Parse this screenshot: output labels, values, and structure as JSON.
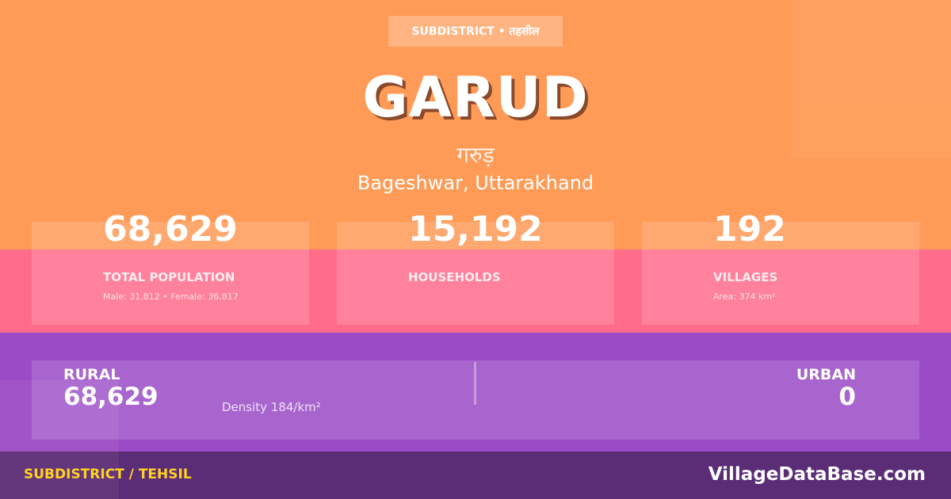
{
  "header": {
    "badge": "SUBDISTRICT • तहसील",
    "title": "GARUD",
    "title_hindi": "गरुड़",
    "location": "Bageshwar, Uttarakhand"
  },
  "stats": [
    {
      "value": "68,629",
      "label": "TOTAL POPULATION",
      "sub": "Male: 31,812 • Female: 36,817"
    },
    {
      "value": "15,192",
      "label": "HOUSEHOLDS",
      "sub": ""
    },
    {
      "value": "192",
      "label": "VILLAGES",
      "sub": "Area: 374 km²"
    }
  ],
  "split": {
    "rural_label": "RURAL",
    "rural_value": "68,629",
    "density": "Density 184/km²",
    "urban_label": "URBAN",
    "urban_value": "0"
  },
  "footer": {
    "type": "SUBDISTRICT / TEHSIL",
    "site": "VillageDataBase.com"
  },
  "colors": {
    "orange": "#ff9b57",
    "pink": "#ff6b8a",
    "purple": "#9b4bc6",
    "footer": "#5c2d77",
    "accent": "#ffd21f"
  }
}
